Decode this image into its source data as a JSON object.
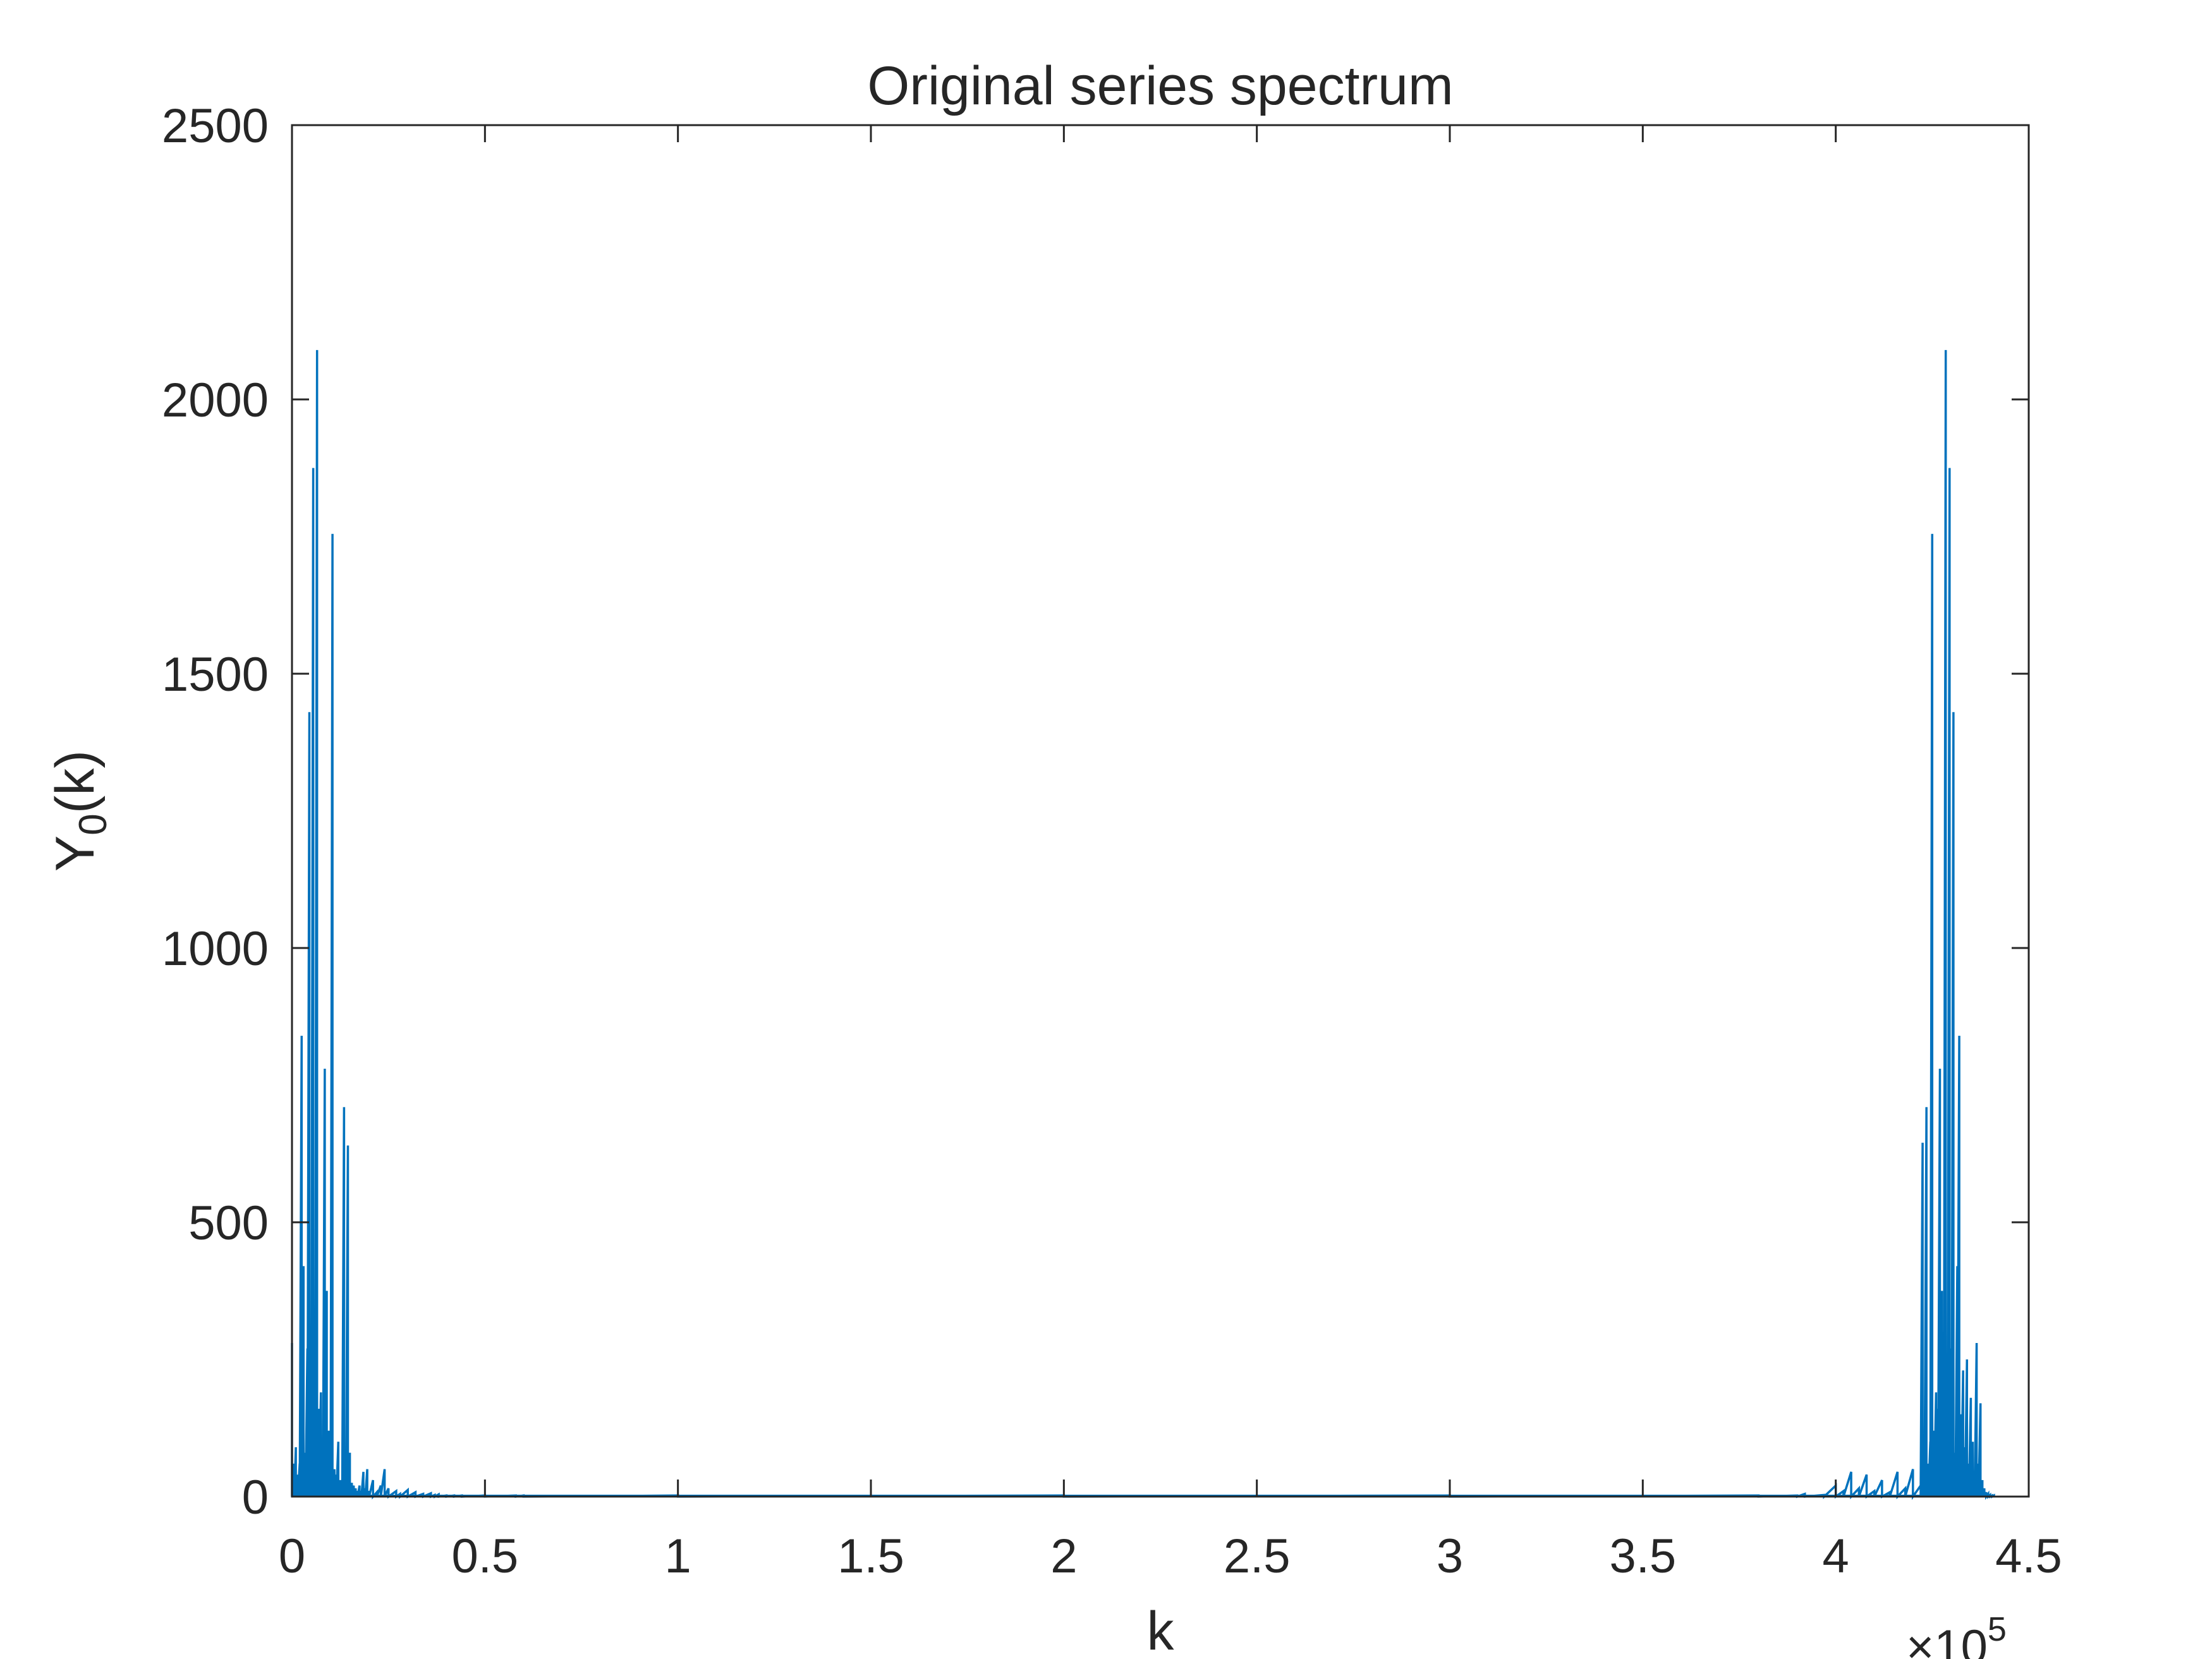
{
  "chart_data": {
    "type": "line",
    "title": "Original series spectrum",
    "xlabel": "k",
    "ylabel_main": "Y",
    "ylabel_sub": "0",
    "ylabel_tail": "(k)",
    "x_exponent_base": "×10",
    "x_exponent_power": "5",
    "xlim": [
      0,
      4.5
    ],
    "ylim": [
      0,
      2500
    ],
    "xticks": [
      0,
      0.5,
      1,
      1.5,
      2,
      2.5,
      3,
      3.5,
      4,
      4.5
    ],
    "xtick_labels": [
      "0",
      "0.5",
      "1",
      "1.5",
      "2",
      "2.5",
      "3",
      "3.5",
      "4",
      "4.5"
    ],
    "yticks": [
      0,
      500,
      1000,
      1500,
      2000,
      2500
    ],
    "ytick_labels": [
      "0",
      "500",
      "1000",
      "1500",
      "2000",
      "2500"
    ],
    "grid": false,
    "series": [
      {
        "color": "#0072BD",
        "x": [
          0,
          0.003,
          0.006,
          0.01,
          0.015,
          0.02,
          0.025,
          0.03,
          0.035,
          0.04,
          0.045,
          0.05,
          0.055,
          0.06,
          0.065,
          0.07,
          0.075,
          0.08,
          0.085,
          0.09,
          0.095,
          0.1,
          0.105,
          0.11,
          0.115,
          0.12,
          0.125,
          0.13,
          0.135,
          0.14,
          0.145,
          0.15,
          0.155,
          0.16,
          0.165,
          0.17,
          0.175,
          0.18,
          0.185,
          0.19,
          0.195,
          0.2,
          0.21,
          0.22,
          0.23,
          0.24,
          0.25,
          0.27,
          0.28,
          0.3,
          0.32,
          0.34,
          0.36,
          0.37,
          0.38,
          0.4,
          0.42,
          0.44,
          0.5,
          0.58,
          0.6,
          1.0,
          2.0,
          3.0,
          3.8,
          3.9,
          3.92,
          3.97,
          4.0,
          4.02,
          4.04,
          4.06,
          4.08,
          4.1,
          4.12,
          4.14,
          4.16,
          4.18,
          4.2,
          4.22,
          4.225,
          4.23,
          4.235,
          4.24,
          4.245,
          4.25,
          4.255,
          4.26,
          4.265,
          4.27,
          4.275,
          4.28,
          4.285,
          4.29,
          4.295,
          4.3,
          4.305,
          4.31,
          4.315,
          4.32,
          4.325,
          4.33,
          4.335,
          4.34,
          4.345,
          4.35,
          4.355,
          4.36,
          4.365,
          4.37,
          4.375,
          4.38,
          4.385,
          4.39,
          4.395,
          4.4,
          4.405,
          4.41
        ],
        "y": [
          280,
          60,
          35,
          90,
          40,
          60,
          840,
          420,
          80,
          270,
          1430,
          130,
          1875,
          300,
          2090,
          160,
          190,
          90,
          780,
          375,
          120,
          60,
          1755,
          50,
          40,
          100,
          30,
          30,
          710,
          40,
          640,
          80,
          25,
          20,
          15,
          10,
          20,
          10,
          45,
          15,
          50,
          10,
          30,
          8,
          20,
          50,
          15,
          10,
          5,
          12,
          8,
          5,
          6,
          3,
          4,
          2,
          2,
          2,
          2,
          2,
          2,
          2,
          2,
          2,
          2,
          2,
          5,
          3,
          20,
          10,
          45,
          15,
          40,
          10,
          30,
          8,
          45,
          15,
          50,
          20,
          645,
          40,
          710,
          60,
          100,
          1755,
          120,
          190,
          160,
          780,
          375,
          300,
          2090,
          130,
          1875,
          270,
          1430,
          80,
          420,
          840,
          150,
          230,
          90,
          250,
          60,
          180,
          100,
          40,
          280,
          60,
          170,
          30,
          15,
          8,
          5,
          3,
          2,
          2
        ]
      }
    ]
  }
}
